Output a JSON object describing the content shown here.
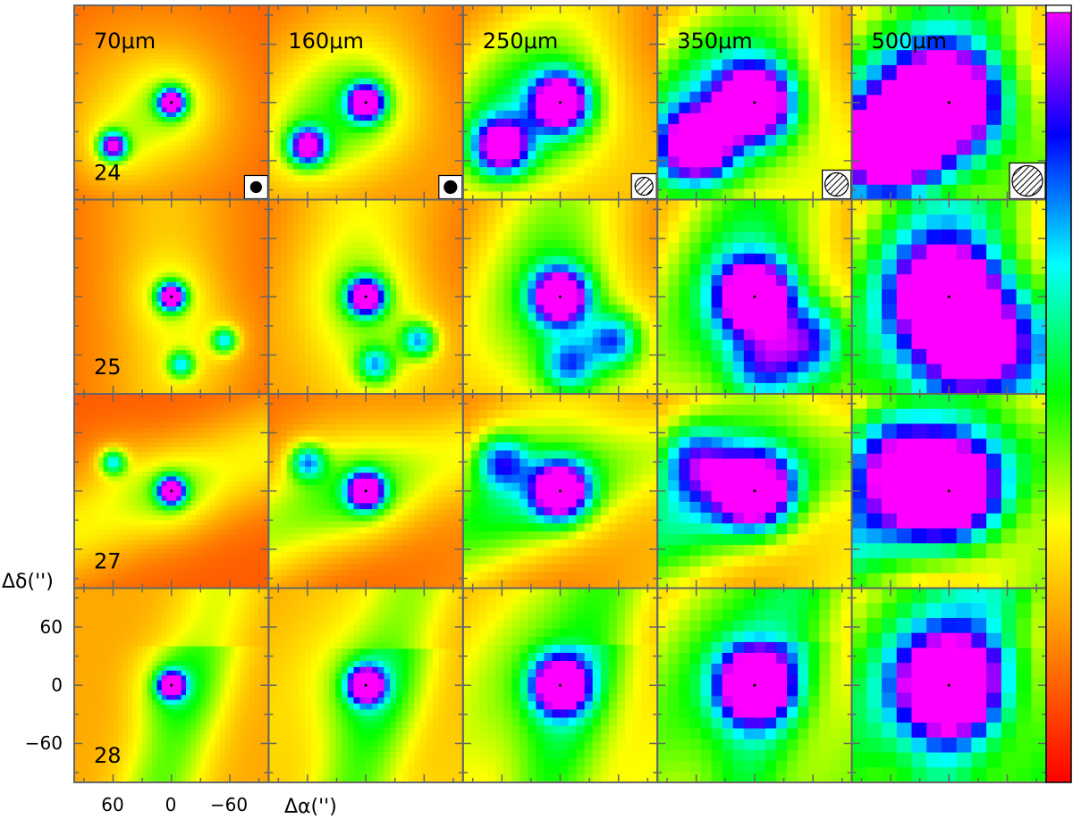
{
  "figure": {
    "columns": [
      {
        "label": "70μm",
        "beam": "small-solid",
        "smooth": 1
      },
      {
        "label": "160μm",
        "beam": "small-solid",
        "smooth": 2
      },
      {
        "label": "250μm",
        "beam": "hatched-small",
        "smooth": 4
      },
      {
        "label": "350μm",
        "beam": "hatched-medium",
        "smooth": 6
      },
      {
        "label": "500μm",
        "beam": "hatched-large",
        "smooth": 9
      }
    ],
    "rows": [
      {
        "label": "24",
        "sources": [
          {
            "dx": 0,
            "dy": 0,
            "peak": 1.0
          },
          {
            "dx": 60,
            "dy": -45,
            "peak": 0.85
          }
        ],
        "background": "mixed"
      },
      {
        "label": "25",
        "sources": [
          {
            "dx": 0,
            "dy": 0,
            "peak": 1.0
          },
          {
            "dx": -55,
            "dy": -45,
            "peak": 0.45
          },
          {
            "dx": -10,
            "dy": -70,
            "peak": 0.4
          }
        ],
        "background": "warm"
      },
      {
        "label": "27",
        "sources": [
          {
            "dx": 0,
            "dy": 0,
            "peak": 1.0
          },
          {
            "dx": 60,
            "dy": 30,
            "peak": 0.45
          }
        ],
        "background": "filament"
      },
      {
        "label": "28",
        "sources": [
          {
            "dx": 0,
            "dy": 0,
            "peak": 1.0
          }
        ],
        "background": "cool"
      }
    ],
    "axes": {
      "ylabel": "Δδ('')",
      "xlabel": "Δα('')",
      "xticks": [
        "60",
        "0",
        "−60"
      ],
      "yticks": [
        "60",
        "0",
        "−60"
      ]
    },
    "colorbar": {
      "colors": [
        "#ff0000",
        "#ff8000",
        "#ffff00",
        "#00ff00",
        "#00ffff",
        "#0000ff",
        "#ff00ff"
      ]
    }
  }
}
